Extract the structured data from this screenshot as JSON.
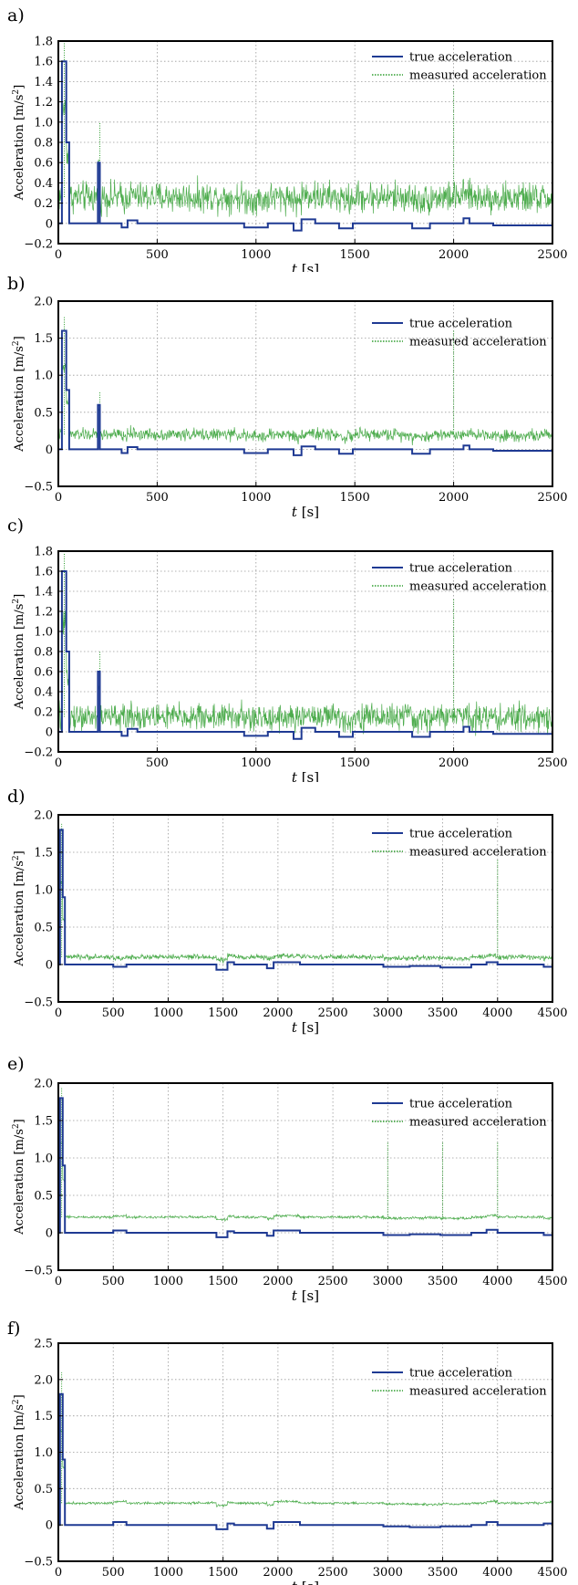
{
  "chart_data": [
    {
      "panel": "a)",
      "type": "line",
      "xlabel_italic": "t",
      "xlabel_unit": "[s]",
      "ylabel": "Acceleration [m/s",
      "ylabel_sup": "2",
      "ylabel_end": "]",
      "xlim": [
        0,
        2500
      ],
      "ylim": [
        -0.2,
        1.8
      ],
      "xticks": [
        0,
        500,
        1000,
        1500,
        2000,
        2500
      ],
      "xtick_labels": [
        "0",
        "500",
        "1000",
        "1500",
        "2000",
        "2500"
      ],
      "yticks": [
        -0.2,
        0,
        0.2,
        0.4,
        0.6,
        0.8,
        1.0,
        1.2,
        1.4,
        1.6,
        1.8
      ],
      "ytick_labels": [
        "−0.2",
        "0",
        "0.2",
        "0.4",
        "0.6",
        "0.8",
        "1.0",
        "1.2",
        "1.4",
        "1.6",
        "1.8"
      ],
      "grid": true,
      "legend_position": "top-right",
      "series": [
        {
          "name": "true acceleration",
          "color": "#1f3a93",
          "style": "solid",
          "x": [
            0,
            18,
            18,
            40,
            40,
            55,
            55,
            200,
            200,
            210,
            210,
            320,
            320,
            350,
            350,
            400,
            400,
            940,
            940,
            1060,
            1060,
            1190,
            1190,
            1230,
            1230,
            1300,
            1300,
            1420,
            1420,
            1490,
            1490,
            1790,
            1790,
            1880,
            1880,
            2050,
            2050,
            2080,
            2080,
            2200,
            2200,
            2500
          ],
          "y": [
            0,
            0,
            1.6,
            1.6,
            0.8,
            0.8,
            0,
            0,
            0.6,
            0.6,
            0,
            0,
            -0.04,
            -0.04,
            0.03,
            0.03,
            0,
            0,
            -0.04,
            -0.04,
            0,
            0,
            -0.07,
            -0.07,
            0.04,
            0.04,
            0,
            0,
            -0.05,
            -0.05,
            0,
            0,
            -0.05,
            -0.05,
            0,
            0,
            0.05,
            0.05,
            0,
            0,
            -0.02,
            -0.02
          ]
        },
        {
          "name": "measured acceleration",
          "color": "#2e9e2e",
          "style": "dotted",
          "noise_base": 0.26,
          "noise_amplitude": 0.22,
          "spike_x": [
            30,
            210,
            2000
          ],
          "spike_y": [
            1.78,
            1.0,
            1.33
          ]
        }
      ]
    },
    {
      "panel": "b)",
      "type": "line",
      "xlabel_italic": "t",
      "xlabel_unit": "[s]",
      "ylabel": "Acceleration [m/s",
      "ylabel_sup": "2",
      "ylabel_end": "]",
      "xlim": [
        0,
        2500
      ],
      "ylim": [
        -0.5,
        2.0
      ],
      "xticks": [
        0,
        500,
        1000,
        1500,
        2000,
        2500
      ],
      "xtick_labels": [
        "0",
        "500",
        "1000",
        "1500",
        "2000",
        "2500"
      ],
      "yticks": [
        -0.5,
        0,
        0.5,
        1.0,
        1.5,
        2.0
      ],
      "ytick_labels": [
        "−0.5",
        "0",
        "0.5",
        "1.0",
        "1.5",
        "2.0"
      ],
      "grid": true,
      "legend_position": "top-right",
      "series": [
        {
          "name": "true acceleration",
          "color": "#1f3a93",
          "style": "solid",
          "x": [
            0,
            18,
            18,
            40,
            40,
            55,
            55,
            200,
            200,
            210,
            210,
            320,
            320,
            350,
            350,
            400,
            400,
            940,
            940,
            1060,
            1060,
            1190,
            1190,
            1230,
            1230,
            1300,
            1300,
            1420,
            1420,
            1490,
            1490,
            1790,
            1790,
            1880,
            1880,
            2050,
            2050,
            2080,
            2080,
            2200,
            2200,
            2500
          ],
          "y": [
            0,
            0,
            1.6,
            1.6,
            0.8,
            0.8,
            0,
            0,
            0.6,
            0.6,
            0,
            0,
            -0.05,
            -0.05,
            0.03,
            0.03,
            0,
            0,
            -0.05,
            -0.05,
            0,
            0,
            -0.08,
            -0.08,
            0.04,
            0.04,
            0,
            0,
            -0.06,
            -0.06,
            0,
            0,
            -0.06,
            -0.06,
            0,
            0,
            0.05,
            0.05,
            0,
            0,
            -0.02,
            -0.02
          ]
        },
        {
          "name": "measured acceleration",
          "color": "#2e9e2e",
          "style": "dotted",
          "noise_base": 0.2,
          "noise_amplitude": 0.12,
          "spike_x": [
            30,
            210,
            2000
          ],
          "spike_y": [
            1.8,
            0.78,
            1.6
          ]
        }
      ]
    },
    {
      "panel": "c)",
      "type": "line",
      "xlabel_italic": "t",
      "xlabel_unit": "[s]",
      "ylabel": "Acceleration [m/s",
      "ylabel_sup": "2",
      "ylabel_end": "]",
      "xlim": [
        0,
        2500
      ],
      "ylim": [
        -0.2,
        1.8
      ],
      "xticks": [
        0,
        500,
        1000,
        1500,
        2000,
        2500
      ],
      "xtick_labels": [
        "0",
        "500",
        "1000",
        "1500",
        "2000",
        "2500"
      ],
      "yticks": [
        -0.2,
        0,
        0.2,
        0.4,
        0.6,
        0.8,
        1.0,
        1.2,
        1.4,
        1.6,
        1.8
      ],
      "ytick_labels": [
        "−0.2",
        "0",
        "0.2",
        "0.4",
        "0.6",
        "0.8",
        "1.0",
        "1.2",
        "1.4",
        "1.6",
        "1.8"
      ],
      "grid": true,
      "legend_position": "top-right",
      "series": [
        {
          "name": "true acceleration",
          "color": "#1f3a93",
          "style": "solid",
          "x": [
            0,
            18,
            18,
            40,
            40,
            55,
            55,
            200,
            200,
            210,
            210,
            320,
            320,
            350,
            350,
            400,
            400,
            940,
            940,
            1060,
            1060,
            1190,
            1190,
            1230,
            1230,
            1300,
            1300,
            1420,
            1420,
            1490,
            1490,
            1790,
            1790,
            1880,
            1880,
            2050,
            2050,
            2080,
            2080,
            2200,
            2200,
            2500
          ],
          "y": [
            0,
            0,
            1.6,
            1.6,
            0.8,
            0.8,
            0,
            0,
            0.6,
            0.6,
            0,
            0,
            -0.04,
            -0.04,
            0.03,
            0.03,
            0,
            0,
            -0.04,
            -0.04,
            0,
            0,
            -0.07,
            -0.07,
            0.04,
            0.04,
            0,
            0,
            -0.05,
            -0.05,
            0,
            0,
            -0.05,
            -0.05,
            0,
            0,
            0.05,
            0.05,
            0,
            0,
            -0.02,
            -0.02
          ]
        },
        {
          "name": "measured acceleration",
          "color": "#2e9e2e",
          "style": "dotted",
          "noise_base": 0.15,
          "noise_amplitude": 0.2,
          "spike_x": [
            30,
            210,
            2000
          ],
          "spike_y": [
            1.78,
            0.8,
            1.33
          ]
        }
      ]
    },
    {
      "panel": "d)",
      "type": "line",
      "xlabel_italic": "t",
      "xlabel_unit": "[s]",
      "ylabel": "Acceleration [m/s",
      "ylabel_sup": "2",
      "ylabel_end": "]",
      "xlim": [
        0,
        4500
      ],
      "ylim": [
        -0.5,
        2.0
      ],
      "xticks": [
        0,
        500,
        1000,
        1500,
        2000,
        2500,
        3000,
        3500,
        4000,
        4500
      ],
      "xtick_labels": [
        "0",
        "500",
        "1000",
        "1500",
        "2000",
        "2500",
        "3000",
        "3500",
        "4000",
        "4500"
      ],
      "yticks": [
        -0.5,
        0,
        0.5,
        1.0,
        1.5,
        2.0
      ],
      "ytick_labels": [
        "−0.5",
        "0",
        "0.5",
        "1.0",
        "1.5",
        "2.0"
      ],
      "grid": true,
      "legend_position": "top-right",
      "series": [
        {
          "name": "true acceleration",
          "color": "#1f3a93",
          "style": "solid",
          "x": [
            0,
            15,
            15,
            40,
            40,
            60,
            60,
            500,
            500,
            620,
            620,
            1440,
            1440,
            1540,
            1540,
            1600,
            1600,
            1900,
            1900,
            1960,
            1960,
            2200,
            2200,
            2960,
            2960,
            3200,
            3200,
            3480,
            3480,
            3760,
            3760,
            3900,
            3900,
            4000,
            4000,
            4420,
            4420,
            4500
          ],
          "y": [
            0,
            0,
            1.8,
            1.8,
            0.9,
            0.9,
            0,
            0,
            -0.03,
            -0.03,
            0,
            0,
            -0.07,
            -0.07,
            0.03,
            0.03,
            0,
            0,
            -0.05,
            -0.05,
            0.03,
            0.03,
            0,
            0,
            -0.03,
            -0.03,
            -0.02,
            -0.02,
            -0.04,
            -0.04,
            0,
            0,
            0.03,
            0.03,
            0,
            0,
            -0.03,
            -0.03
          ]
        },
        {
          "name": "measured acceleration",
          "color": "#2e9e2e",
          "style": "dotted",
          "noise_base": 0.1,
          "noise_amplitude": 0.05,
          "spike_x": [
            30,
            4000
          ],
          "spike_y": [
            1.88,
            1.4
          ]
        }
      ]
    },
    {
      "panel": "e)",
      "type": "line",
      "xlabel_italic": "t",
      "xlabel_unit": "[s]",
      "ylabel": "Acceleration [m/s",
      "ylabel_sup": "2",
      "ylabel_end": "]",
      "xlim": [
        0,
        4500
      ],
      "ylim": [
        -0.5,
        2.0
      ],
      "xticks": [
        0,
        500,
        1000,
        1500,
        2000,
        2500,
        3000,
        3500,
        4000,
        4500
      ],
      "xtick_labels": [
        "0",
        "500",
        "1000",
        "1500",
        "2000",
        "2500",
        "3000",
        "3500",
        "4000",
        "4500"
      ],
      "yticks": [
        -0.5,
        0,
        0.5,
        1.0,
        1.5,
        2.0
      ],
      "ytick_labels": [
        "−0.5",
        "0",
        "0.5",
        "1.0",
        "1.5",
        "2.0"
      ],
      "grid": true,
      "legend_position": "top-right",
      "series": [
        {
          "name": "true acceleration",
          "color": "#1f3a93",
          "style": "solid",
          "x": [
            0,
            15,
            15,
            40,
            40,
            60,
            60,
            500,
            500,
            620,
            620,
            1440,
            1440,
            1540,
            1540,
            1600,
            1600,
            1900,
            1900,
            1960,
            1960,
            2200,
            2200,
            2960,
            2960,
            3200,
            3200,
            3480,
            3480,
            3760,
            3760,
            3900,
            3900,
            4000,
            4000,
            4420,
            4420,
            4500
          ],
          "y": [
            0,
            0,
            1.8,
            1.8,
            0.9,
            0.9,
            0,
            0,
            0.03,
            0.03,
            0,
            0,
            -0.06,
            -0.06,
            0.02,
            0.02,
            0,
            0,
            -0.04,
            -0.04,
            0.03,
            0.03,
            0,
            0,
            -0.03,
            -0.03,
            -0.02,
            -0.02,
            -0.03,
            -0.03,
            0,
            0,
            0.04,
            0.04,
            0,
            0,
            -0.03,
            -0.03
          ]
        },
        {
          "name": "measured acceleration",
          "color": "#2e9e2e",
          "style": "dotted",
          "noise_base": 0.21,
          "noise_amplitude": 0.025,
          "spike_x": [
            30,
            3000,
            3500,
            4000
          ],
          "spike_y": [
            1.95,
            1.22,
            1.22,
            1.22
          ]
        }
      ]
    },
    {
      "panel": "f)",
      "type": "line",
      "xlabel_italic": "t",
      "xlabel_unit": "[s]",
      "ylabel": "Acceleration [m/s",
      "ylabel_sup": "2",
      "ylabel_end": "]",
      "xlim": [
        0,
        4500
      ],
      "ylim": [
        -0.5,
        2.5
      ],
      "xticks": [
        0,
        500,
        1000,
        1500,
        2000,
        2500,
        3000,
        3500,
        4000,
        4500
      ],
      "xtick_labels": [
        "0",
        "500",
        "1000",
        "1500",
        "2000",
        "2500",
        "3000",
        "3500",
        "4000",
        "4500"
      ],
      "yticks": [
        -0.5,
        0,
        0.5,
        1.0,
        1.5,
        2.0,
        2.5
      ],
      "ytick_labels": [
        "−0.5",
        "0",
        "0.5",
        "1.0",
        "1.5",
        "2.0",
        "2.5"
      ],
      "grid": true,
      "legend_position": "top-right",
      "series": [
        {
          "name": "true acceleration",
          "color": "#1f3a93",
          "style": "solid",
          "x": [
            0,
            15,
            15,
            40,
            40,
            60,
            60,
            500,
            500,
            620,
            620,
            1440,
            1440,
            1540,
            1540,
            1600,
            1600,
            1900,
            1900,
            1960,
            1960,
            2200,
            2200,
            2960,
            2960,
            3200,
            3200,
            3480,
            3480,
            3760,
            3760,
            3900,
            3900,
            4000,
            4000,
            4420,
            4420,
            4500
          ],
          "y": [
            0,
            0,
            1.8,
            1.8,
            0.9,
            0.9,
            0,
            0,
            0.04,
            0.04,
            0,
            0,
            -0.06,
            -0.06,
            0.02,
            0.02,
            0,
            0,
            -0.05,
            -0.05,
            0.04,
            0.04,
            0,
            0,
            -0.02,
            -0.02,
            -0.03,
            -0.03,
            -0.02,
            -0.02,
            0,
            0,
            0.04,
            0.04,
            0,
            0,
            0.02,
            0.02
          ]
        },
        {
          "name": "measured acceleration",
          "color": "#2e9e2e",
          "style": "dotted",
          "noise_base": 0.3,
          "noise_amplitude": 0.025,
          "spike_x": [
            30
          ],
          "spike_y": [
            2.1
          ]
        }
      ]
    }
  ]
}
